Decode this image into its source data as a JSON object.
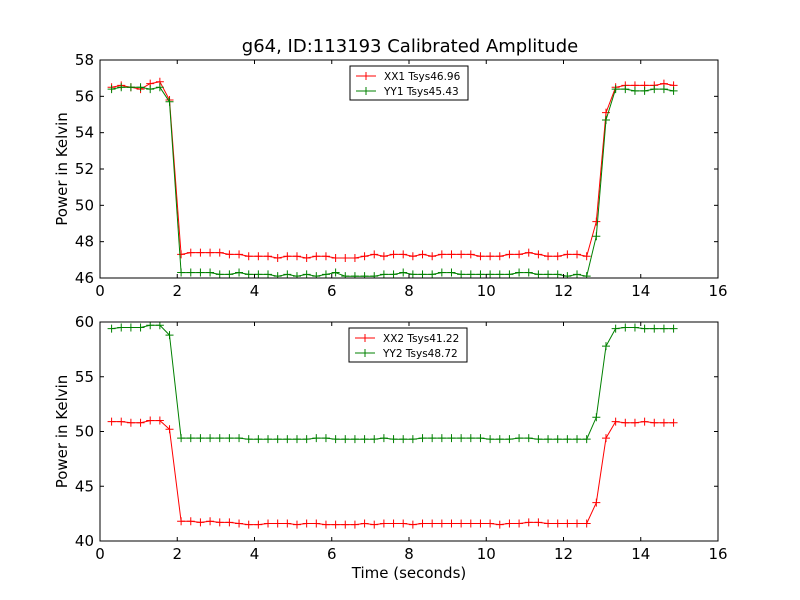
{
  "title": "g64, ID:113193 Calibrated Amplitude",
  "colors": {
    "red": "#ff0000",
    "green": "#008000"
  },
  "chart_data": [
    {
      "type": "line",
      "xlabel": "",
      "ylabel": "Power in Kelvin",
      "xlim": [
        0,
        16
      ],
      "ylim": [
        46,
        58
      ],
      "xticks": [
        0,
        2,
        4,
        6,
        8,
        10,
        12,
        14,
        16
      ],
      "yticks": [
        46,
        48,
        50,
        52,
        54,
        56,
        58
      ],
      "legend_position": "top-center",
      "x": [
        0.3,
        0.55,
        0.8,
        1.05,
        1.3,
        1.55,
        1.8,
        2.1,
        2.35,
        2.6,
        2.85,
        3.1,
        3.35,
        3.6,
        3.85,
        4.1,
        4.35,
        4.6,
        4.85,
        5.1,
        5.35,
        5.6,
        5.85,
        6.1,
        6.35,
        6.6,
        6.85,
        7.1,
        7.35,
        7.6,
        7.85,
        8.1,
        8.35,
        8.6,
        8.85,
        9.1,
        9.35,
        9.6,
        9.85,
        10.1,
        10.35,
        10.6,
        10.85,
        11.1,
        11.35,
        11.6,
        11.85,
        12.1,
        12.35,
        12.6,
        12.85,
        13.1,
        13.35,
        13.6,
        13.85,
        14.1,
        14.35,
        14.6,
        14.85
      ],
      "series": [
        {
          "name": "XX1 Tsys46.96",
          "color": "#ff0000",
          "values": [
            56.5,
            56.6,
            56.5,
            56.4,
            56.7,
            56.8,
            55.8,
            47.3,
            47.4,
            47.4,
            47.4,
            47.4,
            47.3,
            47.3,
            47.2,
            47.2,
            47.2,
            47.1,
            47.2,
            47.2,
            47.1,
            47.2,
            47.2,
            47.1,
            47.1,
            47.1,
            47.2,
            47.3,
            47.2,
            47.3,
            47.3,
            47.2,
            47.3,
            47.2,
            47.3,
            47.3,
            47.3,
            47.3,
            47.2,
            47.2,
            47.2,
            47.3,
            47.3,
            47.4,
            47.3,
            47.2,
            47.2,
            47.3,
            47.3,
            47.2,
            49.1,
            55.1,
            56.5,
            56.6,
            56.6,
            56.6,
            56.6,
            56.7,
            56.6
          ]
        },
        {
          "name": "YY1 Tsys45.43",
          "color": "#008000",
          "values": [
            56.4,
            56.5,
            56.5,
            56.5,
            56.4,
            56.5,
            55.7,
            46.3,
            46.3,
            46.3,
            46.3,
            46.2,
            46.2,
            46.3,
            46.2,
            46.2,
            46.2,
            46.1,
            46.2,
            46.1,
            46.2,
            46.1,
            46.2,
            46.3,
            46.1,
            46.1,
            46.1,
            46.1,
            46.2,
            46.2,
            46.3,
            46.2,
            46.2,
            46.2,
            46.3,
            46.3,
            46.2,
            46.2,
            46.2,
            46.2,
            46.2,
            46.2,
            46.3,
            46.3,
            46.2,
            46.2,
            46.2,
            46.1,
            46.2,
            46.1,
            48.3,
            54.7,
            56.4,
            56.4,
            56.3,
            56.3,
            56.4,
            56.4,
            56.3
          ]
        }
      ]
    },
    {
      "type": "line",
      "xlabel": "Time (seconds)",
      "ylabel": "Power in Kelvin",
      "xlim": [
        0,
        16
      ],
      "ylim": [
        40,
        60
      ],
      "xticks": [
        0,
        2,
        4,
        6,
        8,
        10,
        12,
        14,
        16
      ],
      "yticks": [
        40,
        45,
        50,
        55,
        60
      ],
      "legend_position": "top-center",
      "x": [
        0.3,
        0.55,
        0.8,
        1.05,
        1.3,
        1.55,
        1.8,
        2.1,
        2.35,
        2.6,
        2.85,
        3.1,
        3.35,
        3.6,
        3.85,
        4.1,
        4.35,
        4.6,
        4.85,
        5.1,
        5.35,
        5.6,
        5.85,
        6.1,
        6.35,
        6.6,
        6.85,
        7.1,
        7.35,
        7.6,
        7.85,
        8.1,
        8.35,
        8.6,
        8.85,
        9.1,
        9.35,
        9.6,
        9.85,
        10.1,
        10.35,
        10.6,
        10.85,
        11.1,
        11.35,
        11.6,
        11.85,
        12.1,
        12.35,
        12.6,
        12.85,
        13.1,
        13.35,
        13.6,
        13.85,
        14.1,
        14.35,
        14.6,
        14.85
      ],
      "series": [
        {
          "name": "XX2 Tsys41.22",
          "color": "#ff0000",
          "values": [
            50.9,
            50.9,
            50.8,
            50.8,
            51.0,
            51.0,
            50.2,
            41.8,
            41.8,
            41.7,
            41.8,
            41.7,
            41.7,
            41.6,
            41.5,
            41.5,
            41.6,
            41.6,
            41.6,
            41.5,
            41.6,
            41.6,
            41.5,
            41.5,
            41.5,
            41.5,
            41.6,
            41.5,
            41.6,
            41.6,
            41.6,
            41.5,
            41.6,
            41.6,
            41.6,
            41.6,
            41.6,
            41.6,
            41.6,
            41.6,
            41.5,
            41.6,
            41.6,
            41.7,
            41.7,
            41.6,
            41.6,
            41.6,
            41.6,
            41.6,
            43.5,
            49.4,
            50.9,
            50.8,
            50.8,
            50.9,
            50.8,
            50.8,
            50.8
          ]
        },
        {
          "name": "YY2 Tsys48.72",
          "color": "#008000",
          "values": [
            59.4,
            59.5,
            59.5,
            59.5,
            59.7,
            59.7,
            58.8,
            49.4,
            49.4,
            49.4,
            49.4,
            49.4,
            49.4,
            49.4,
            49.3,
            49.3,
            49.3,
            49.3,
            49.3,
            49.3,
            49.3,
            49.4,
            49.4,
            49.3,
            49.3,
            49.3,
            49.3,
            49.3,
            49.4,
            49.3,
            49.3,
            49.3,
            49.4,
            49.4,
            49.4,
            49.4,
            49.4,
            49.4,
            49.4,
            49.3,
            49.3,
            49.3,
            49.4,
            49.4,
            49.3,
            49.3,
            49.3,
            49.3,
            49.3,
            49.3,
            51.3,
            57.8,
            59.4,
            59.5,
            59.5,
            59.4,
            59.4,
            59.4,
            59.4
          ]
        }
      ]
    }
  ]
}
